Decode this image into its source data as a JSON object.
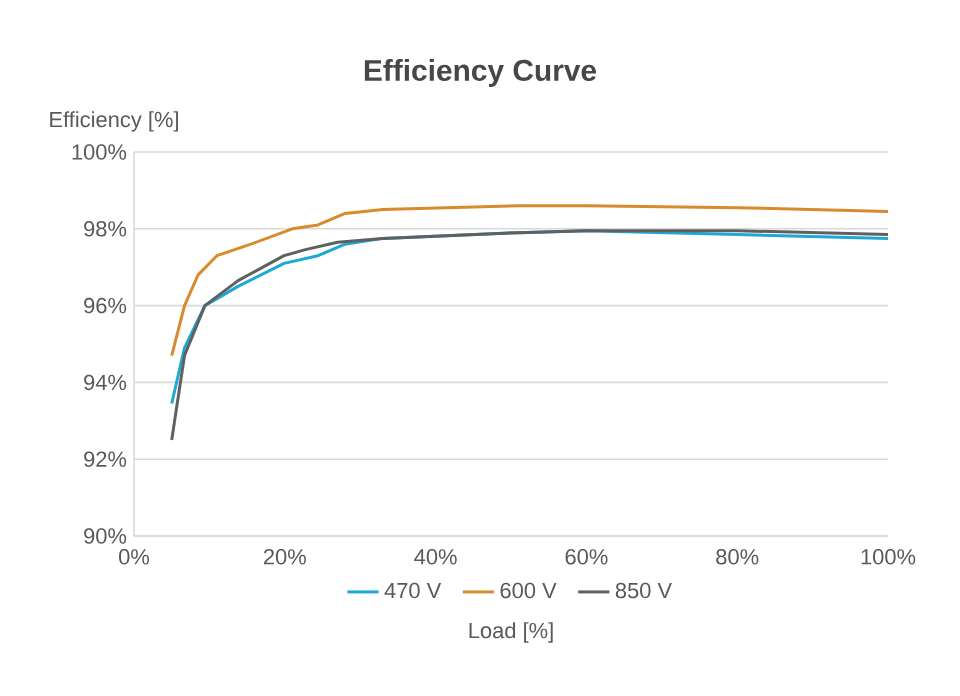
{
  "chart_data": {
    "type": "line",
    "title": "Efficiency Curve",
    "xlabel": "Load [%]",
    "ylabel": "Efficiency [%]",
    "xlim": [
      0,
      100
    ],
    "ylim": [
      90,
      100
    ],
    "xticks": [
      {
        "value": 0,
        "label": "0%"
      },
      {
        "value": 20,
        "label": "20%"
      },
      {
        "value": 40,
        "label": "40%"
      },
      {
        "value": 60,
        "label": "60%"
      },
      {
        "value": 80,
        "label": "80%"
      },
      {
        "value": 100,
        "label": "100%"
      }
    ],
    "yticks": [
      {
        "value": 90,
        "label": "90%"
      },
      {
        "value": 92,
        "label": "92%"
      },
      {
        "value": 94,
        "label": "94%"
      },
      {
        "value": 96,
        "label": "96%"
      },
      {
        "value": 98,
        "label": "98%"
      },
      {
        "value": 100,
        "label": "100%"
      }
    ],
    "grid": "y",
    "legend": "bottom",
    "marker": "none",
    "line_style": "solid",
    "series": [
      {
        "name": "470 V",
        "color": "#1ea8d6",
        "x": [
          5,
          6.7,
          9.4,
          13.8,
          19.9,
          24.4,
          28,
          33,
          51,
          60,
          80,
          100
        ],
        "values": [
          93.45,
          94.9,
          96.0,
          96.5,
          97.1,
          97.3,
          97.6,
          97.75,
          97.9,
          97.95,
          97.85,
          97.75
        ]
      },
      {
        "name": "600 V",
        "color": "#d98a2c",
        "x": [
          5,
          6.7,
          8.5,
          11,
          15.5,
          21,
          24.4,
          28,
          33,
          51,
          60,
          80,
          100
        ],
        "values": [
          94.7,
          96.0,
          96.8,
          97.3,
          97.6,
          98.0,
          98.1,
          98.4,
          98.5,
          98.6,
          98.6,
          98.55,
          98.45
        ]
      },
      {
        "name": "850 V",
        "color": "#606060",
        "x": [
          5,
          6.7,
          9.4,
          13.8,
          19.9,
          22.6,
          27,
          33,
          51,
          60,
          80,
          100
        ],
        "values": [
          92.5,
          94.7,
          96.0,
          96.65,
          97.3,
          97.45,
          97.65,
          97.75,
          97.9,
          97.95,
          97.95,
          97.85
        ]
      }
    ]
  }
}
